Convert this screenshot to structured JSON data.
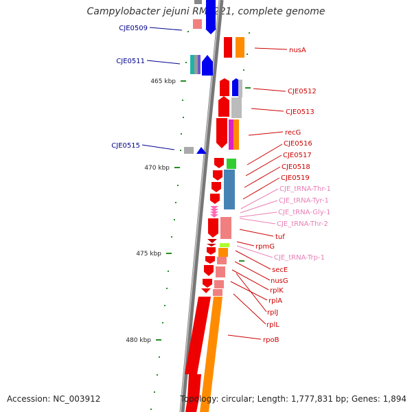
{
  "title": "Campylobacter jejuni RM1221, complete genome",
  "accession": "Accession: NC_003912",
  "topology": "Topology: circular; Length: 1,777,831 bp; Genes: 1,894",
  "colors": {
    "backbone": "#777777",
    "forward_gene": "#ee0000",
    "reverse_gene": "#0000ee",
    "orange_feature": "#ff8c00",
    "steelblue_feature": "#4682b4",
    "tick": "#228b22",
    "left_label": "#00008b",
    "right_label": "#cc0000",
    "trna_label": "#e87eb4"
  },
  "scale_labels": [
    "465 kbp",
    "470 kbp",
    "475 kbp",
    "480 kbp"
  ],
  "left_labels": [
    "CJE0509",
    "CJE0511",
    "CJE0515"
  ],
  "right_labels": [
    "nusA",
    "CJE0512",
    "CJE0513",
    "recG",
    "CJE0516",
    "CJE0517",
    "CJE0518",
    "CJE0519",
    "tuf",
    "rpmG",
    "secE",
    "nusG",
    "rplK",
    "rplA",
    "rplJ",
    "rplL",
    "rpoB"
  ],
  "trna_labels": [
    "CJE_tRNA-Thr-1",
    "CJE_tRNA-Tyr-1",
    "CJE_tRNA-Gly-1",
    "CJE_tRNA-Thr-2",
    "CJE_tRNA-Trp-1"
  ]
}
